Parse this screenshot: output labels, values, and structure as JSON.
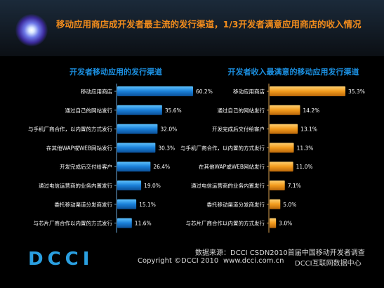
{
  "header": {
    "title": "移动应用商店成开发者最主流的发行渠道，1/3开发者满意应用商店的收入情况"
  },
  "footer": {
    "logo": "DCCI",
    "source": "数据来源：DCCI CSDN2010首届中国移动开发者调查",
    "copyright": "Copyright ©DCCI 2010",
    "website": "www.dcci.com.cn",
    "center": "DCCI互联网数据中心"
  },
  "colors": {
    "left_bar": "#1a7fd8",
    "right_bar": "#f29a1c",
    "title": "#1b8fe0",
    "headline": "#f28c1c"
  },
  "chart_data": [
    {
      "type": "bar",
      "orientation": "horizontal",
      "title": "开发者移动应用的发行渠道",
      "categories": [
        "移动应用商店",
        "通过自己的网站发行",
        "与手机厂商合作，以内置的方式发行",
        "在其他WAP或WEB网站发行",
        "开发完成后交付给客户",
        "通过电信运营商的业务内置发行",
        "委托移动渠道分发商发行",
        "与芯片厂商合作以内置的方式发行"
      ],
      "values": [
        60.2,
        35.6,
        32.0,
        30.3,
        26.4,
        19.0,
        15.1,
        11.6
      ],
      "value_labels": [
        "60.2%",
        "35.6%",
        "32.0%",
        "30.3%",
        "26.4%",
        "19.0%",
        "15.1%",
        "11.6%"
      ],
      "xlim": [
        0,
        60.2
      ],
      "grid": false
    },
    {
      "type": "bar",
      "orientation": "horizontal",
      "title": "开发者收入最满意的移动应用发行渠道",
      "categories": [
        "移动应用商店",
        "通过自己的网站发行",
        "开发完成后交付给客户",
        "与手机厂商合作，以内置的方式发行",
        "在其他WAP或WEB网站发行",
        "通过电信运营商的业务内置发行",
        "委托移动渠道分发商发行",
        "与芯片厂商合作以内置的方式发行"
      ],
      "values": [
        35.3,
        14.2,
        13.1,
        11.3,
        11.0,
        7.1,
        5.0,
        3.0
      ],
      "value_labels": [
        "35.3%",
        "14.2%",
        "13.1%",
        "11.3%",
        "11.0%",
        "7.1%",
        "5.0%",
        "3.0%"
      ],
      "xlim": [
        0,
        35.3
      ],
      "grid": false
    }
  ]
}
